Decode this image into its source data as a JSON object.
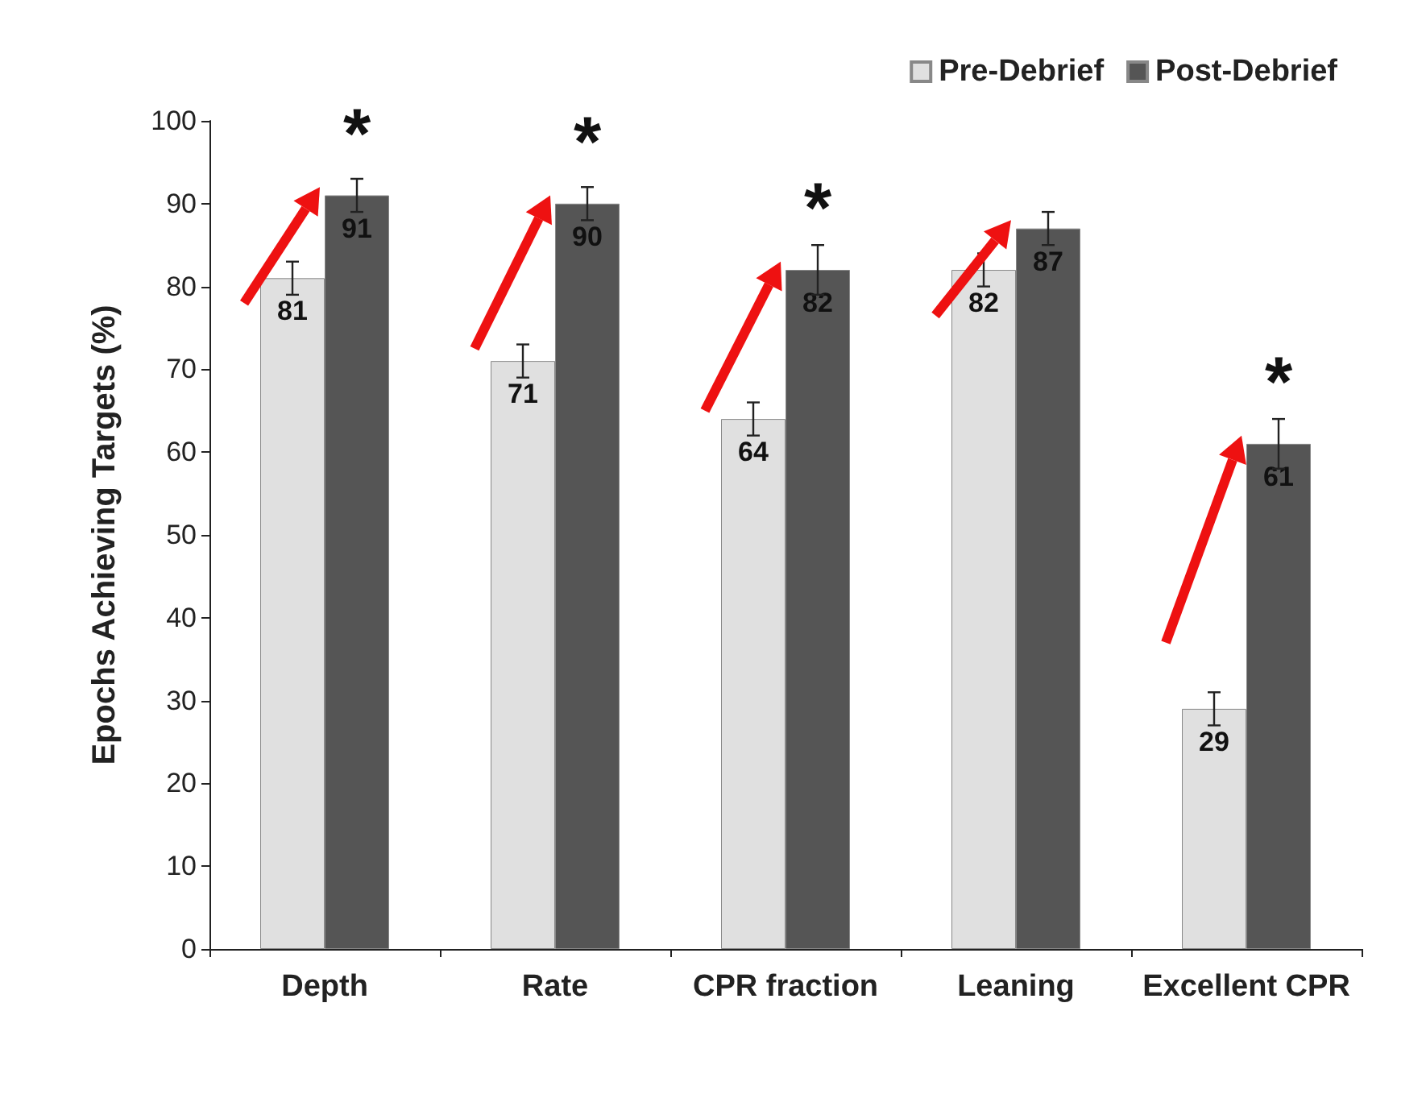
{
  "chart_data": {
    "type": "bar",
    "ylabel": "Epochs Achieving Targets (%)",
    "categories": [
      "Depth",
      "Rate",
      "CPR fraction",
      "Leaning",
      "Excellent CPR"
    ],
    "series": [
      {
        "name": "Pre-Debrief",
        "color": "#e0e0e0",
        "values": [
          81,
          71,
          64,
          82,
          29
        ],
        "errors": [
          2,
          2,
          2,
          2,
          2
        ]
      },
      {
        "name": "Post-Debrief",
        "color": "#555555",
        "values": [
          91,
          90,
          82,
          87,
          61
        ],
        "errors": [
          2,
          2,
          3,
          2,
          3
        ]
      }
    ],
    "ylim": [
      0,
      100
    ],
    "yticks": [
      0,
      10,
      20,
      30,
      40,
      50,
      60,
      70,
      80,
      90,
      100
    ],
    "annotations": [
      {
        "text": "*",
        "x": "Depth",
        "y": 91
      },
      {
        "text": "*",
        "x": "Rate",
        "y": 90
      },
      {
        "text": "*",
        "x": "CPR fraction",
        "y": 82
      },
      {
        "text": "*",
        "x": "Excellent CPR",
        "y": 61
      }
    ],
    "data_labels": true,
    "grid": false,
    "legend": "top right"
  }
}
